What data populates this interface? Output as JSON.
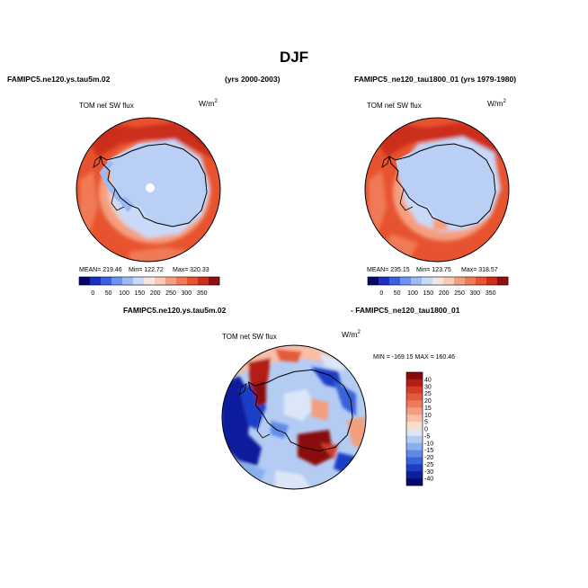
{
  "chart_data": [
    {
      "type": "heatmap",
      "title": "FAMIPC5.ne120.ys.tau5m.02",
      "subtitle": "(yrs 2000-2003)",
      "variable": "TOM net SW flux",
      "units": "W/m",
      "units_exp": "2",
      "stats": {
        "mean": "219.46",
        "min": "122.72",
        "max": "320.33"
      },
      "stats_text": {
        "mean": "MEAN= 219.46",
        "min": "Min= 122.72",
        "max": "Max= 320.33"
      },
      "projection": "south polar stereographic",
      "colorbar": {
        "ticks": [
          "0",
          "50",
          "100",
          "150",
          "200",
          "250",
          "300",
          "350"
        ],
        "colors": [
          "#08086b",
          "#1c2fbd",
          "#3a5fe0",
          "#6b94f0",
          "#9dbaf5",
          "#c9daf8",
          "#f2e6df",
          "#f9cbb6",
          "#f59f7f",
          "#ef7a55",
          "#e8532f",
          "#cc2d1b",
          "#8e1010"
        ]
      }
    },
    {
      "type": "heatmap",
      "title": "FAMIPC5_ne120_tau1800_01 (yrs 1979-1980)",
      "variable": "TOM net SW flux",
      "units": "W/m",
      "units_exp": "2",
      "stats": {
        "mean": "235.15",
        "min": "123.75",
        "max": "318.57"
      },
      "stats_text": {
        "mean": "MEAN= 235.15",
        "min": "Min= 123.75",
        "max": "Max= 318.57"
      },
      "projection": "south polar stereographic",
      "colorbar": {
        "ticks": [
          "0",
          "50",
          "100",
          "150",
          "200",
          "250",
          "300",
          "350"
        ],
        "colors": [
          "#08086b",
          "#1c2fbd",
          "#3a5fe0",
          "#6b94f0",
          "#9dbaf5",
          "#c9daf8",
          "#f2e6df",
          "#f9cbb6",
          "#f59f7f",
          "#ef7a55",
          "#e8532f",
          "#cc2d1b",
          "#8e1010"
        ]
      }
    },
    {
      "type": "heatmap",
      "title": "FAMIPC5.ne120.ys.tau5m.02",
      "title_right": "- FAMIPC5_ne120_tau1800_01",
      "variable": "TOM net SW flux",
      "units": "W/m",
      "units_exp": "2",
      "stats": {
        "min": "-169.15",
        "max": "160.46"
      },
      "stats_text": "MIN = -169.15 MAX = 160.46",
      "projection": "south polar stereographic",
      "colorbar": {
        "ticks": [
          "40",
          "30",
          "25",
          "20",
          "15",
          "10",
          "5",
          "0",
          "-5",
          "-10",
          "-15",
          "-20",
          "-25",
          "-30",
          "-40"
        ],
        "colors": [
          "#8a0a0a",
          "#b41c14",
          "#d23c28",
          "#e55a3c",
          "#ee7c5c",
          "#f49e80",
          "#f8bea6",
          "#fadcca",
          "#dbe6f8",
          "#b4ccf4",
          "#8aaeee",
          "#5e8ae6",
          "#3964da",
          "#1c3ec6",
          "#0e1f9c",
          "#060a6e"
        ]
      }
    }
  ],
  "figure": {
    "title": "DJF"
  }
}
